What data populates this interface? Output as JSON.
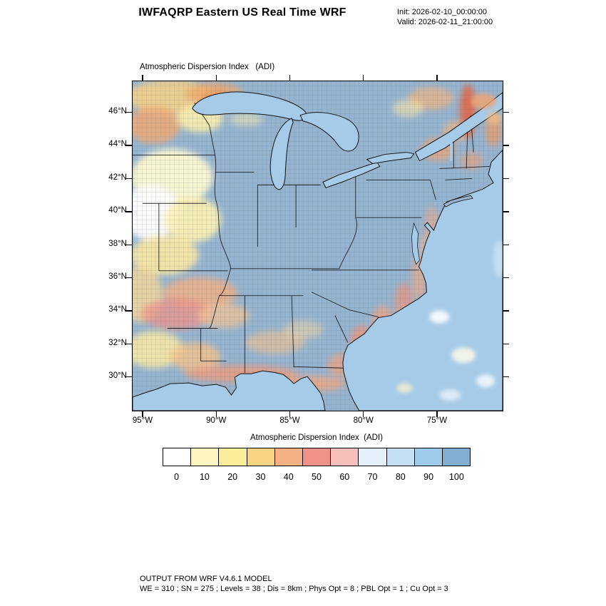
{
  "header": {
    "title": "IWFAQRP Eastern US Real Time WRF",
    "init_line": "Init: 2026-02-10_00:00:00",
    "valid_line": "Valid: 2026-02-11_21:00:00"
  },
  "map": {
    "subtitle": "Atmospheric Dispersion Index   (ADI)",
    "y_tick_labels": [
      "46°N",
      "44°N",
      "42°N",
      "40°N",
      "38°N",
      "36°N",
      "34°N",
      "32°N",
      "30°N"
    ],
    "x_tick_labels": [
      "95°W",
      "90°W",
      "85°W",
      "80°W",
      "75°W"
    ]
  },
  "colorbar": {
    "title": "Atmospheric Dispersion Index  (ADI)",
    "tick_labels": [
      "0",
      "10",
      "20",
      "30",
      "40",
      "50",
      "60",
      "70",
      "80",
      "90",
      "100"
    ],
    "colors": [
      "#ffffff",
      "#fdf6c3",
      "#fbee9a",
      "#f8d482",
      "#f5b183",
      "#f29387",
      "#f7c0ba",
      "#e3f0fa",
      "#c4e0f4",
      "#9ecbea",
      "#82aed2"
    ]
  },
  "footer": {
    "line1": "OUTPUT FROM WRF V4.6.1 MODEL",
    "line2": "WE = 310 ; SN = 275 ; Levels = 38 ; Dis = 8km ; Phys Opt = 8 ; PBL Opt = 1 ; Cu Opt = 3"
  },
  "chart_data": {
    "type": "heatmap",
    "title": "Atmospheric Dispersion Index (ADI)",
    "colorbar_levels": [
      0,
      10,
      20,
      30,
      40,
      50,
      60,
      70,
      80,
      90,
      100
    ],
    "lat_ticks_deg_n": [
      46,
      44,
      42,
      40,
      38,
      36,
      34,
      32,
      30
    ],
    "lon_ticks_deg_w": [
      95,
      90,
      85,
      80,
      75
    ],
    "legend_position": "bottom",
    "notes_visible_on_screen": "Filled county-level ADI map over the eastern US; high ADI (blue, 70-100) over most interior land; low ADI (white/yellow/orange, 0-50) bands over the upper Midwest, lower Mississippi valley, Gulf and Atlantic coastal strips, and northern New England"
  }
}
